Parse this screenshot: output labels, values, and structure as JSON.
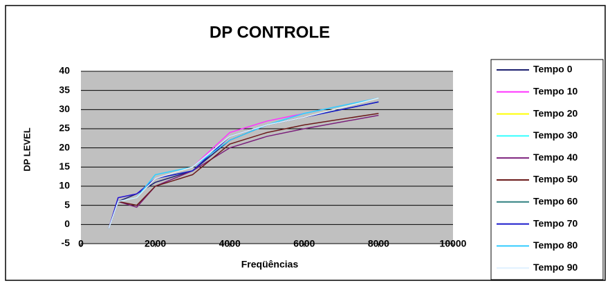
{
  "chart_data": {
    "type": "line",
    "title": "DP CONTROLE",
    "x_label": "Freqüências",
    "y_label": "DP LEVEL",
    "x": [
      750,
      1000,
      1500,
      2000,
      3000,
      4000,
      5000,
      6000,
      8000
    ],
    "series": [
      {
        "name": "Tempo 0",
        "color": "#1b1f6e",
        "values": [
          -1,
          6,
          8,
          11,
          14,
          22,
          26,
          28,
          32
        ]
      },
      {
        "name": "Tempo 10",
        "color": "#ff33ff",
        "values": [
          -1,
          7,
          8,
          12,
          15,
          24,
          27,
          29,
          33
        ]
      },
      {
        "name": "Tempo 20",
        "color": "#ffff00",
        "values": [
          -1,
          6,
          7,
          12,
          15,
          23,
          26,
          28,
          33
        ]
      },
      {
        "name": "Tempo 30",
        "color": "#33ffff",
        "values": [
          -1,
          6,
          7,
          13,
          15,
          23,
          26,
          29,
          33
        ]
      },
      {
        "name": "Tempo 40",
        "color": "#7a1e7a",
        "values": [
          -1,
          6,
          4.5,
          10,
          14,
          20,
          23,
          25,
          28.5
        ]
      },
      {
        "name": "Tempo 50",
        "color": "#6b1a1a",
        "values": [
          -1,
          6,
          5,
          10,
          13,
          21,
          24,
          26,
          29
        ]
      },
      {
        "name": "Tempo 60",
        "color": "#2f8080",
        "values": [
          -1,
          6,
          7,
          12,
          14,
          23,
          26,
          28,
          32
        ]
      },
      {
        "name": "Tempo 70",
        "color": "#1a1acc",
        "values": [
          -1,
          7,
          8,
          12,
          14,
          23,
          26,
          28,
          32
        ]
      },
      {
        "name": "Tempo 80",
        "color": "#33ccff",
        "values": [
          -1,
          6,
          7,
          13,
          15,
          22,
          26,
          29,
          33
        ]
      },
      {
        "name": "Tempo 90",
        "color": "#e0f0ff",
        "values": [
          -1,
          6,
          7,
          12,
          15,
          23,
          26,
          28,
          33
        ]
      }
    ],
    "xlim": [
      0,
      10000
    ],
    "xticks": [
      0,
      2000,
      4000,
      6000,
      8000,
      10000
    ],
    "ylim": [
      -5,
      40
    ],
    "yticks": [
      -5,
      0,
      5,
      10,
      15,
      20,
      25,
      30,
      35,
      40
    ],
    "grid": true,
    "legend": "right"
  }
}
